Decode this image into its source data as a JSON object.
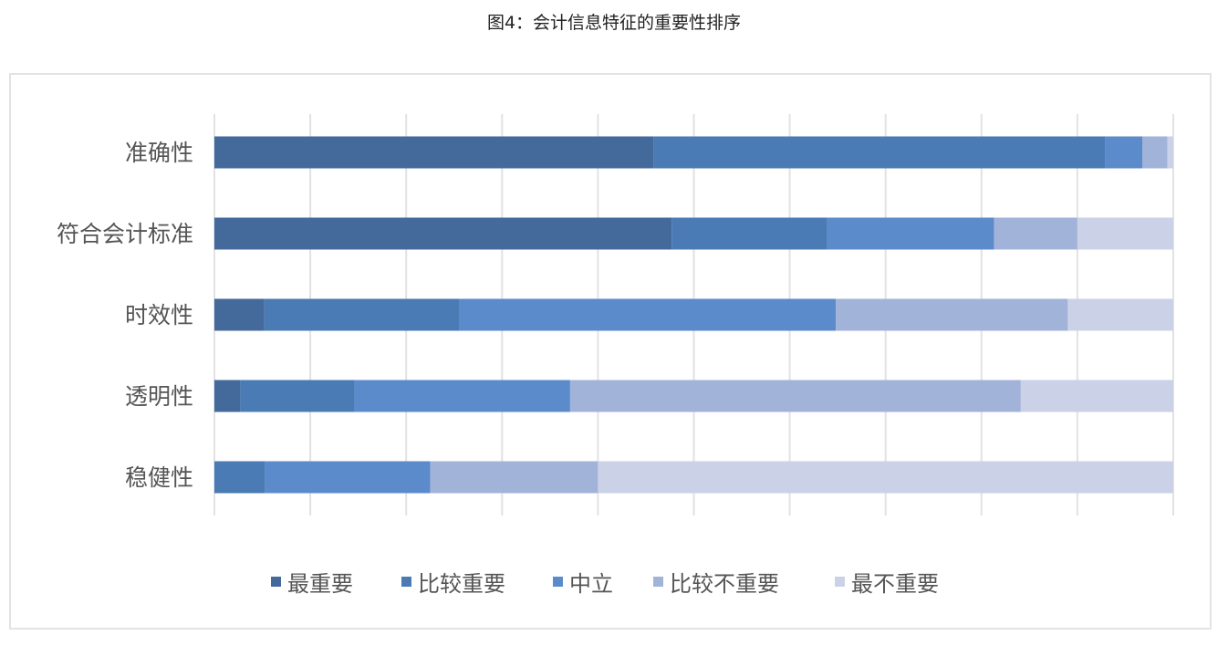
{
  "chart_data": {
    "type": "bar",
    "orientation": "horizontal",
    "stacked": "percent",
    "title": "图4：会计信息特征的重要性排序",
    "categories": [
      "准确性",
      "符合会计标准",
      "时效性",
      "透明性",
      "稳健性"
    ],
    "series": [
      {
        "name": "最重要",
        "color": "#44699b",
        "values": [
          45.8,
          47.7,
          5.2,
          2.7,
          0
        ]
      },
      {
        "name": "比较重要",
        "color": "#4a7bb5",
        "values": [
          47.1,
          16.2,
          20.3,
          11.9,
          5.3
        ]
      },
      {
        "name": "中立",
        "color": "#5b8bcb",
        "values": [
          3.9,
          17.4,
          39.3,
          22.5,
          17.2
        ]
      },
      {
        "name": "比较不重要",
        "color": "#a2b3da",
        "values": [
          2.6,
          8.7,
          24.2,
          47.0,
          17.5
        ]
      },
      {
        "name": "最不重要",
        "color": "#cbd2e8",
        "values": [
          0.6,
          10.0,
          11.0,
          15.9,
          60.0
        ]
      }
    ],
    "xlim": [
      0,
      100
    ],
    "x_gridlines_step": 10,
    "grid": true,
    "x_tick_labels_shown": false,
    "legend": "bottom"
  }
}
